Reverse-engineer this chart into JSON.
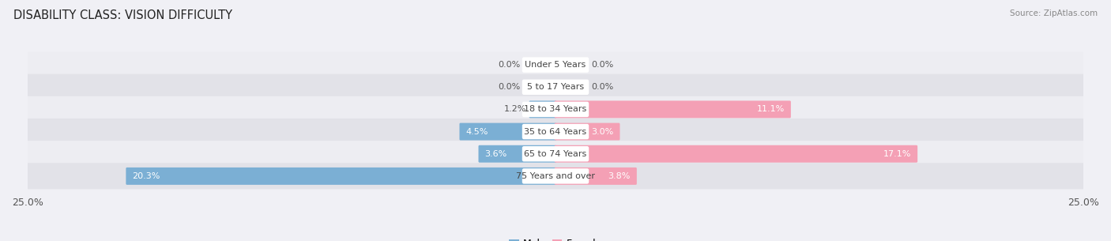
{
  "title": "DISABILITY CLASS: VISION DIFFICULTY",
  "source": "Source: ZipAtlas.com",
  "categories": [
    "Under 5 Years",
    "5 to 17 Years",
    "18 to 34 Years",
    "35 to 64 Years",
    "65 to 74 Years",
    "75 Years and over"
  ],
  "male_values": [
    0.0,
    0.0,
    1.2,
    4.5,
    3.6,
    20.3
  ],
  "female_values": [
    0.0,
    0.0,
    11.1,
    3.0,
    17.1,
    3.8
  ],
  "male_color": "#7bafd4",
  "female_color": "#f4a0b5",
  "row_bg_color_odd": "#ededf2",
  "row_bg_color_even": "#e2e2e8",
  "axis_max": 25.0,
  "center_label_color": "#444444",
  "value_color_outside": "#555555",
  "title_fontsize": 10.5,
  "label_fontsize": 8.0,
  "tick_fontsize": 9,
  "legend_fontsize": 9
}
